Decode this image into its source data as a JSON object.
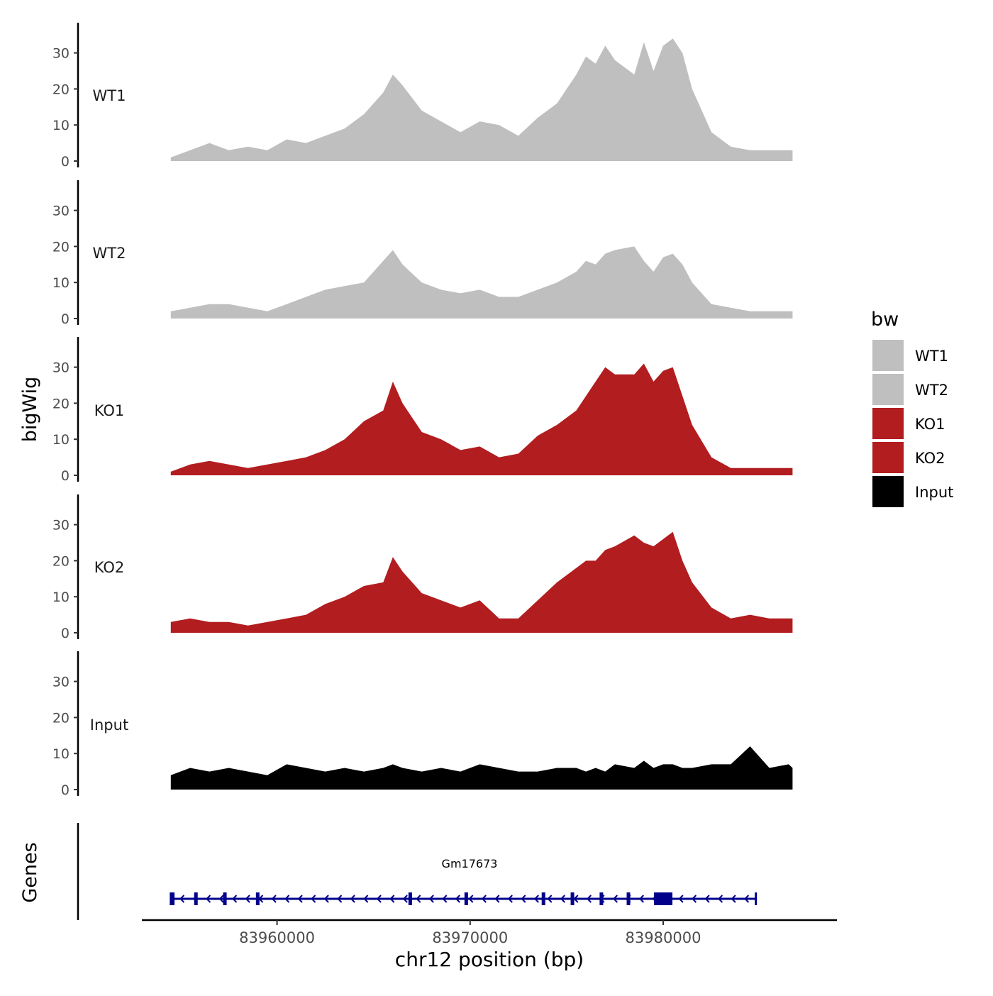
{
  "chart_data": {
    "type": "area",
    "y_axis_title": "bigWig",
    "x_axis_title": "chr12 position (bp)",
    "x_ticks": [
      83960000,
      83970000,
      83980000
    ],
    "x_tick_labels": [
      "83960000",
      "83970000",
      "83980000"
    ],
    "x_range": [
      83953000,
      83989000
    ],
    "ylim": [
      0,
      38
    ],
    "y_ticks": [
      0,
      10,
      20,
      30
    ],
    "y_tick_labels": [
      "0",
      "10",
      "20",
      "30"
    ],
    "series": [
      {
        "name": "WT1",
        "color": "#bfbfbf",
        "x": [
          83954500,
          83955500,
          83956500,
          83957500,
          83958500,
          83959500,
          83960500,
          83961500,
          83962500,
          83963500,
          83964500,
          83965500,
          83966000,
          83966500,
          83967500,
          83968500,
          83969500,
          83970500,
          83971500,
          83972500,
          83973500,
          83974500,
          83975500,
          83976000,
          83976500,
          83977000,
          83977500,
          83978500,
          83979000,
          83979500,
          83980000,
          83980500,
          83981000,
          83981500,
          83982500,
          83983500,
          83984500,
          83985500,
          83986500,
          83986700
        ],
        "values": [
          1,
          3,
          5,
          3,
          4,
          3,
          6,
          5,
          7,
          9,
          13,
          19,
          24,
          21,
          14,
          11,
          8,
          11,
          10,
          7,
          12,
          16,
          24,
          29,
          27,
          32,
          28,
          24,
          33,
          25,
          32,
          34,
          30,
          20,
          8,
          4,
          3,
          3,
          3,
          3
        ]
      },
      {
        "name": "WT2",
        "color": "#bfbfbf",
        "x": [
          83954500,
          83955500,
          83956500,
          83957500,
          83958500,
          83959500,
          83960500,
          83961500,
          83962500,
          83963500,
          83964500,
          83965500,
          83966000,
          83966500,
          83967500,
          83968500,
          83969500,
          83970500,
          83971500,
          83972500,
          83973500,
          83974500,
          83975500,
          83976000,
          83976500,
          83977000,
          83977500,
          83978500,
          83979000,
          83979500,
          83980000,
          83980500,
          83981000,
          83981500,
          83982500,
          83983500,
          83984500,
          83985500,
          83986500,
          83986700
        ],
        "values": [
          2,
          3,
          4,
          4,
          3,
          2,
          4,
          6,
          8,
          9,
          10,
          16,
          19,
          15,
          10,
          8,
          7,
          8,
          6,
          6,
          8,
          10,
          13,
          16,
          15,
          18,
          19,
          20,
          16,
          13,
          17,
          18,
          15,
          10,
          4,
          3,
          2,
          2,
          2,
          2
        ]
      },
      {
        "name": "KO1",
        "color": "#b21d1f",
        "x": [
          83954500,
          83955500,
          83956500,
          83957500,
          83958500,
          83959500,
          83960500,
          83961500,
          83962500,
          83963500,
          83964500,
          83965500,
          83966000,
          83966500,
          83967500,
          83968500,
          83969500,
          83970500,
          83971500,
          83972500,
          83973500,
          83974500,
          83975500,
          83976000,
          83976500,
          83977000,
          83977500,
          83978500,
          83979000,
          83979500,
          83980000,
          83980500,
          83981000,
          83981500,
          83982500,
          83983500,
          83984500,
          83985500,
          83986500,
          83986700
        ],
        "values": [
          1,
          3,
          4,
          3,
          2,
          3,
          4,
          5,
          7,
          10,
          15,
          18,
          26,
          20,
          12,
          10,
          7,
          8,
          5,
          6,
          11,
          14,
          18,
          22,
          26,
          30,
          28,
          28,
          31,
          26,
          29,
          30,
          22,
          14,
          5,
          2,
          2,
          2,
          2,
          2
        ]
      },
      {
        "name": "KO2",
        "color": "#b21d1f",
        "x": [
          83954500,
          83955500,
          83956500,
          83957500,
          83958500,
          83959500,
          83960500,
          83961500,
          83962500,
          83963500,
          83964500,
          83965500,
          83966000,
          83966500,
          83967500,
          83968500,
          83969500,
          83970500,
          83971500,
          83972500,
          83973500,
          83974500,
          83975500,
          83976000,
          83976500,
          83977000,
          83977500,
          83978500,
          83979000,
          83979500,
          83980000,
          83980500,
          83981000,
          83981500,
          83982500,
          83983500,
          83984500,
          83985500,
          83986500,
          83986700
        ],
        "values": [
          3,
          4,
          3,
          3,
          2,
          3,
          4,
          5,
          8,
          10,
          13,
          14,
          21,
          17,
          11,
          9,
          7,
          9,
          4,
          4,
          9,
          14,
          18,
          20,
          20,
          23,
          24,
          27,
          25,
          24,
          26,
          28,
          20,
          14,
          7,
          4,
          5,
          4,
          4,
          4
        ]
      },
      {
        "name": "Input",
        "color": "#000000",
        "x": [
          83954500,
          83955500,
          83956500,
          83957500,
          83958500,
          83959500,
          83960500,
          83961500,
          83962500,
          83963500,
          83964500,
          83965500,
          83966000,
          83966500,
          83967500,
          83968500,
          83969500,
          83970500,
          83971500,
          83972500,
          83973500,
          83974500,
          83975500,
          83976000,
          83976500,
          83977000,
          83977500,
          83978500,
          83979000,
          83979500,
          83980000,
          83980500,
          83981000,
          83981500,
          83982500,
          83983500,
          83984500,
          83985500,
          83986500,
          83986700
        ],
        "values": [
          4,
          6,
          5,
          6,
          5,
          4,
          7,
          6,
          5,
          6,
          5,
          6,
          7,
          6,
          5,
          6,
          5,
          7,
          6,
          5,
          5,
          6,
          6,
          5,
          6,
          5,
          7,
          6,
          8,
          6,
          7,
          7,
          6,
          6,
          7,
          7,
          12,
          6,
          7,
          6
        ]
      }
    ],
    "legend": {
      "title": "bw",
      "position": "right",
      "entries": [
        {
          "label": "WT1",
          "color": "#bfbfbf"
        },
        {
          "label": "WT2",
          "color": "#bfbfbf"
        },
        {
          "label": "KO1",
          "color": "#b21d1f"
        },
        {
          "label": "KO2",
          "color": "#b21d1f"
        },
        {
          "label": "Input",
          "color": "#000000"
        }
      ]
    },
    "genes_track": {
      "title": "Genes",
      "gene_name": "Gm17673",
      "strand": "-",
      "color": "#00008b",
      "start": 83954500,
      "end": 83984800,
      "exons": [
        83954600,
        83955800,
        83957300,
        83959000,
        83966900,
        83969800,
        83973800,
        83975300,
        83976800,
        83978200,
        83980000
      ]
    }
  }
}
